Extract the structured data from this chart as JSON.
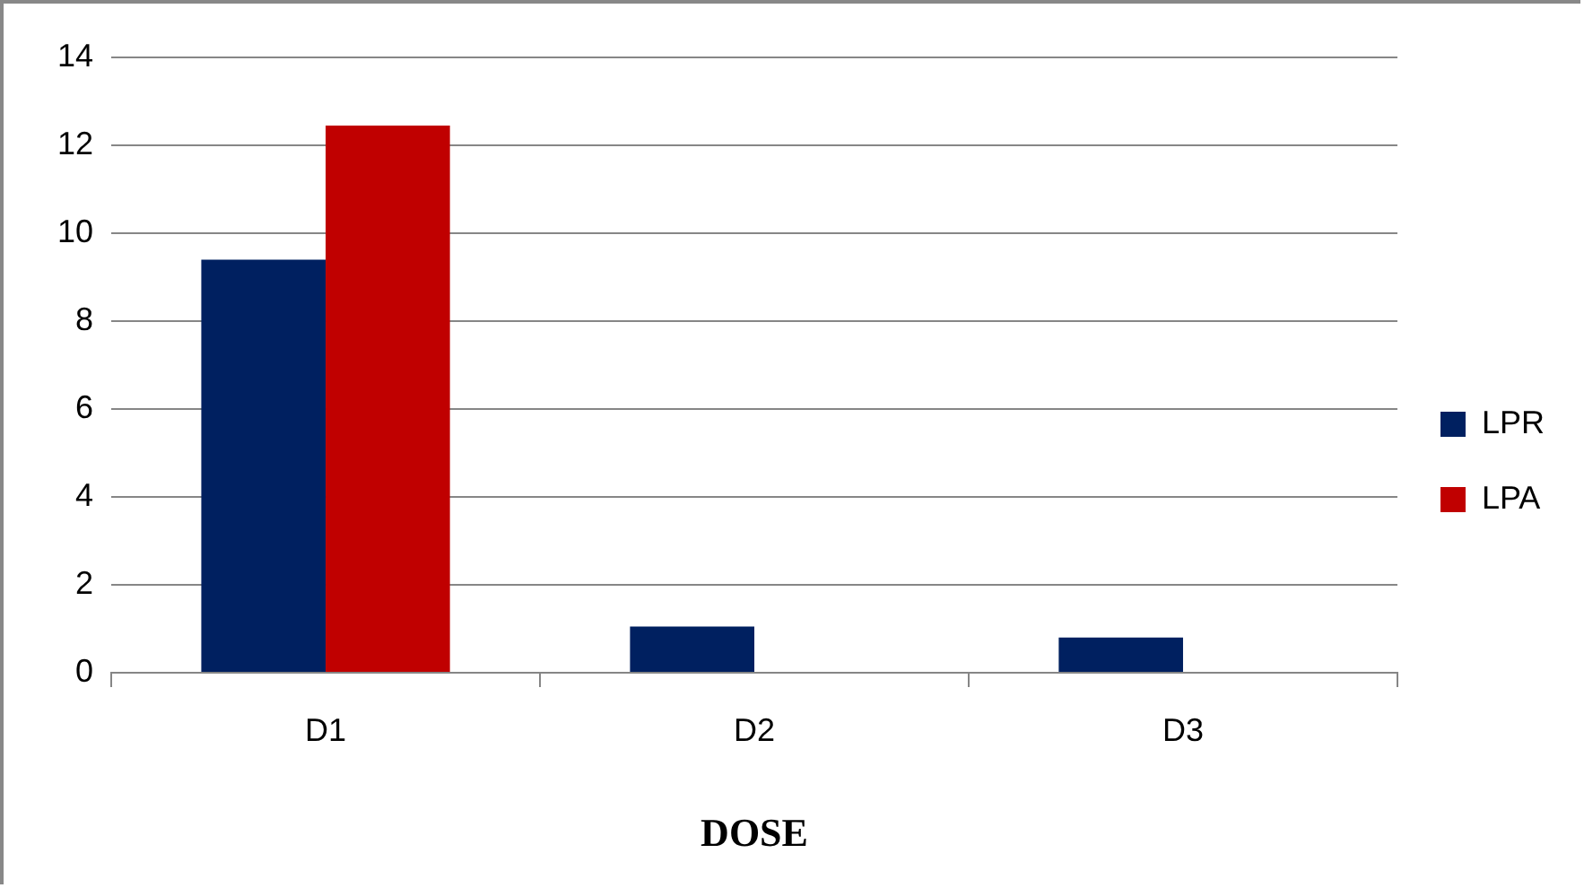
{
  "chart_data": {
    "type": "bar",
    "xlabel": "DOSE",
    "categories": [
      "D1",
      "D2",
      "D3"
    ],
    "series": [
      {
        "name": "LPR",
        "color": "#002060",
        "values": [
          9.4,
          1.05,
          0.8
        ]
      },
      {
        "name": "LPA",
        "color": "#c00000",
        "values": [
          12.45,
          0,
          0
        ]
      }
    ],
    "ylim": [
      0,
      14
    ],
    "yticks": [
      0,
      2,
      4,
      6,
      8,
      10,
      12,
      14
    ],
    "grid": "y",
    "legend": "right"
  }
}
